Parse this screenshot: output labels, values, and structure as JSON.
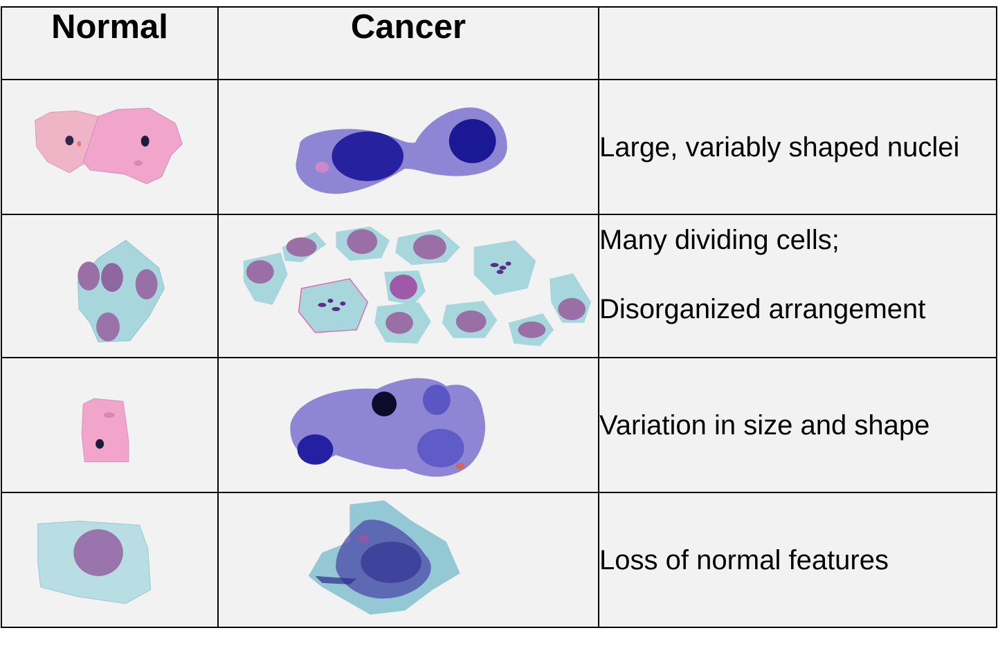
{
  "header": {
    "normal": "Normal",
    "cancer": "Cancer",
    "features": ""
  },
  "rows": [
    {
      "normal_image": "normal-squamous-cells-pair",
      "cancer_image": "cancer-cells-large-nuclei",
      "description": "Large, variably shaped nuclei"
    },
    {
      "normal_image": "normal-cell-cluster",
      "cancer_image": "cancer-dividing-cells",
      "description_line1": "Many dividing cells;",
      "description_line2": "Disorganized arrangement"
    },
    {
      "normal_image": "normal-single-cell",
      "cancer_image": "cancer-irregular-cells",
      "description": "Variation in size and shape"
    },
    {
      "normal_image": "normal-cell-with-nucleus",
      "cancer_image": "cancer-cell-loss-of-features",
      "description": "Loss of normal features"
    }
  ],
  "colors": {
    "cell_background": "#f2f2f2",
    "border": "#000000",
    "pink_cytoplasm": "#efa9c9",
    "blue_cytoplasm": "#8e86d4",
    "dark_nucleus": "#1f1d9e",
    "teal_cytoplasm": "#a7d7dc",
    "purple_nucleus": "#9a6fa6"
  }
}
